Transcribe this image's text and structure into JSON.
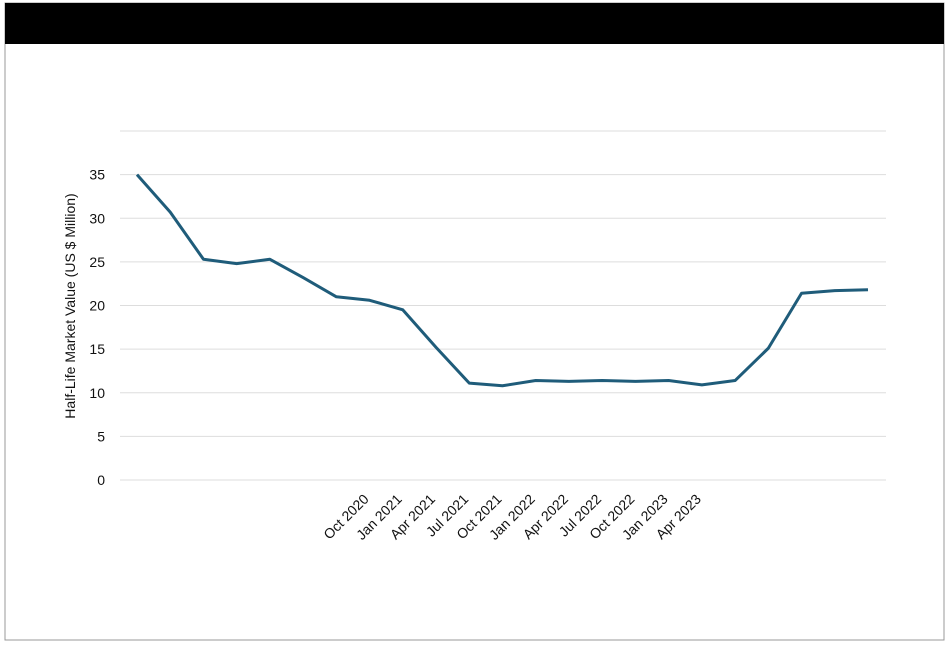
{
  "chart_data": {
    "type": "line",
    "y_label": "Half-Life Market Value (US $ Million)",
    "categories": [
      null,
      null,
      null,
      null,
      null,
      null,
      null,
      "Oct 2020",
      "Jan 2021",
      "Apr 2021",
      "Jul 2021",
      "Oct 2021",
      "Jan 2022",
      "Apr 2022",
      "Jul 2022",
      "Oct 2022",
      "Jan 2023",
      "Apr 2023",
      null,
      null,
      null,
      null,
      null
    ],
    "series": [
      {
        "name": "Half-Life Market Value",
        "color": "#1f5c7a",
        "values": [
          35.0,
          30.7,
          25.3,
          24.8,
          25.3,
          23.2,
          21.0,
          20.6,
          19.5,
          15.2,
          11.1,
          10.8,
          11.4,
          11.3,
          11.4,
          11.3,
          11.4,
          10.9,
          11.4,
          15.1,
          21.4,
          21.7,
          21.8
        ]
      }
    ],
    "ylim": [
      0,
      40
    ],
    "yticks": [
      0,
      5,
      10,
      15,
      20,
      25,
      30,
      35
    ],
    "grid": true
  }
}
